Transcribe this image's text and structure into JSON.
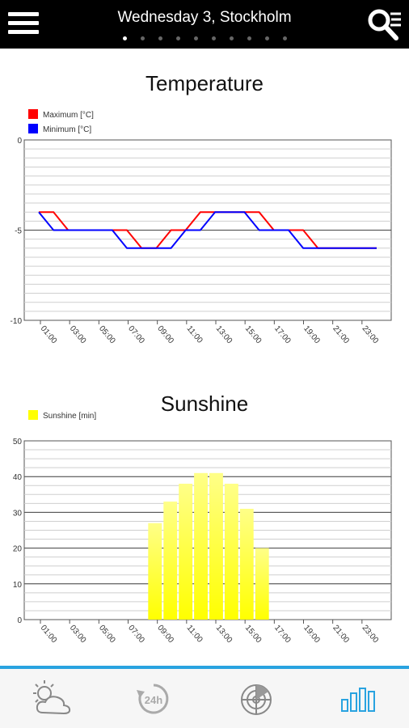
{
  "header": {
    "title": "Wednesday 3, Stockholm",
    "page_count": 10,
    "active_page": 0,
    "menu_icon": "hamburger-menu-icon",
    "search_icon": "search-list-icon"
  },
  "chart_data": [
    {
      "type": "line",
      "title": "Temperature",
      "x": [
        "01:00",
        "02:00",
        "03:00",
        "04:00",
        "05:00",
        "06:00",
        "07:00",
        "08:00",
        "09:00",
        "10:00",
        "11:00",
        "12:00",
        "13:00",
        "14:00",
        "15:00",
        "16:00",
        "17:00",
        "18:00",
        "19:00",
        "20:00",
        "21:00",
        "22:00",
        "23:00",
        "24:00"
      ],
      "xtick_labels": [
        "01:00",
        "03:00",
        "05:00",
        "07:00",
        "09:00",
        "11:00",
        "13:00",
        "15:00",
        "17:00",
        "19:00",
        "21:00",
        "23:00"
      ],
      "series": [
        {
          "name": "Maximum [°C]",
          "color": "#ff0000",
          "values": [
            -4,
            -4,
            -5,
            -5,
            -5,
            -5,
            -5,
            -6,
            -6,
            -5,
            -5,
            -4,
            -4,
            -4,
            -4,
            -4,
            -5,
            -5,
            -5,
            -6,
            -6,
            -6,
            -6,
            -6
          ]
        },
        {
          "name": "Minimum [°C]",
          "color": "#0000ff",
          "values": [
            -4,
            -5,
            -5,
            -5,
            -5,
            -5,
            -6,
            -6,
            -6,
            -6,
            -5,
            -5,
            -4,
            -4,
            -4,
            -5,
            -5,
            -5,
            -6,
            -6,
            -6,
            -6,
            -6,
            -6
          ]
        }
      ],
      "ylim": [
        -10,
        0
      ],
      "ytick_labels": [
        "0",
        "-5",
        "-10"
      ],
      "legend": "top-left"
    },
    {
      "type": "bar",
      "title": "Sunshine",
      "categories": [
        "01:00",
        "02:00",
        "03:00",
        "04:00",
        "05:00",
        "06:00",
        "07:00",
        "08:00",
        "09:00",
        "10:00",
        "11:00",
        "12:00",
        "13:00",
        "14:00",
        "15:00",
        "16:00",
        "17:00",
        "18:00",
        "19:00",
        "20:00",
        "21:00",
        "22:00",
        "23:00",
        "24:00"
      ],
      "xtick_labels": [
        "01:00",
        "03:00",
        "05:00",
        "07:00",
        "09:00",
        "11:00",
        "13:00",
        "15:00",
        "17:00",
        "19:00",
        "21:00",
        "23:00"
      ],
      "series": [
        {
          "name": "Sunshine [min]",
          "color": "#ffff00",
          "values": [
            0,
            0,
            0,
            0,
            0,
            0,
            0,
            0,
            27,
            33,
            38,
            41,
            41,
            38,
            31,
            20,
            0,
            0,
            0,
            0,
            0,
            0,
            0,
            0
          ]
        }
      ],
      "ylim": [
        0,
        50
      ],
      "ytick_labels": [
        "0",
        "10",
        "20",
        "30",
        "40",
        "50"
      ],
      "legend": "top-left"
    }
  ],
  "bottom_nav": {
    "active": "charts",
    "items": [
      {
        "id": "now",
        "icon": "partly-cloudy-icon"
      },
      {
        "id": "24h",
        "icon": "24h-clock-icon",
        "label": "24h"
      },
      {
        "id": "radar",
        "icon": "radar-icon"
      },
      {
        "id": "charts",
        "icon": "bar-chart-icon"
      }
    ]
  }
}
